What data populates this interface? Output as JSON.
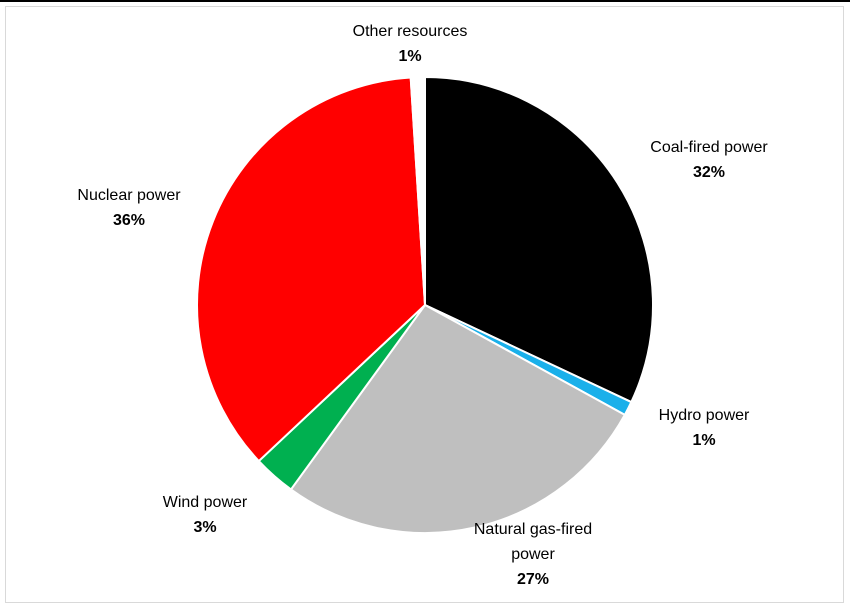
{
  "chart_data": {
    "type": "pie",
    "title": "",
    "unit": "%",
    "slices": [
      {
        "label_lines": [
          "Coal-fired power"
        ],
        "value": 32,
        "value_label": "32%",
        "color": "#000000"
      },
      {
        "label_lines": [
          "Hydro power"
        ],
        "value": 1,
        "value_label": "1%",
        "color": "#1ab0ea"
      },
      {
        "label_lines": [
          "Natural gas-fired",
          "power"
        ],
        "value": 27,
        "value_label": "27%",
        "color": "#bfbfbf"
      },
      {
        "label_lines": [
          "Wind power"
        ],
        "value": 3,
        "value_label": "3%",
        "color": "#00b050"
      },
      {
        "label_lines": [
          "Nuclear power"
        ],
        "value": 36,
        "value_label": "36%",
        "color": "#ff0000"
      },
      {
        "label_lines": [
          "Other resources"
        ],
        "value": 1,
        "value_label": "1%",
        "color": "#ffffff"
      }
    ],
    "start": "12 o'clock",
    "direction": "clockwise",
    "legend": "none",
    "slice_border_color": "#ffffff"
  }
}
